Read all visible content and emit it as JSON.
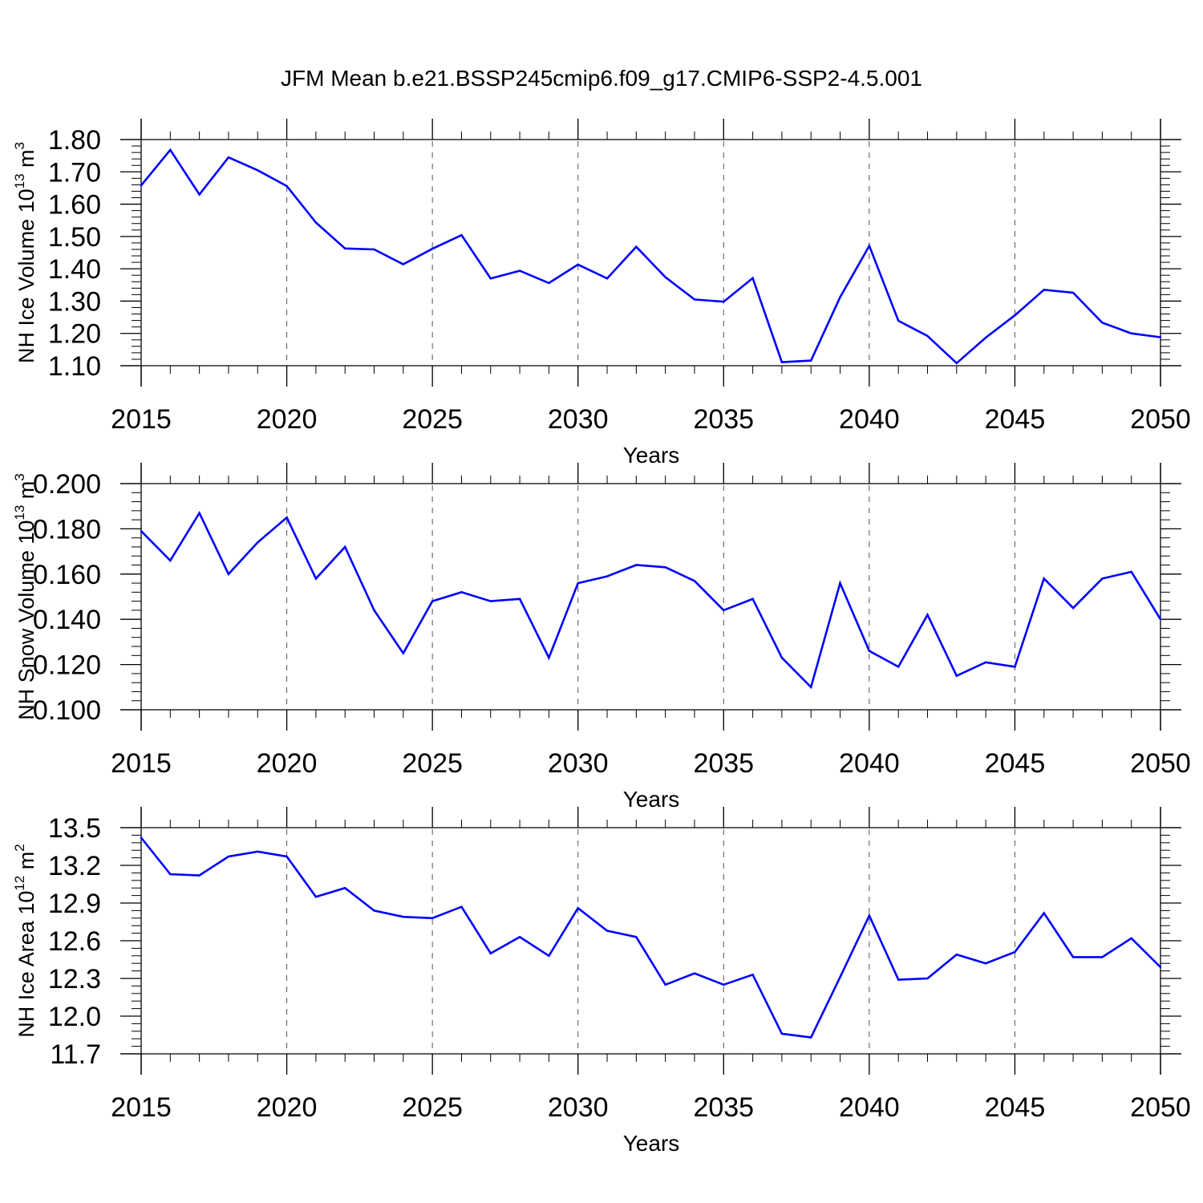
{
  "title": "JFM Mean b.e21.BSSP245cmip6.f09_g17.CMIP6-SSP2-4.5.001",
  "colors": {
    "line": "#0000ff",
    "axis": "#000000",
    "grid": "#555555"
  },
  "chart_data": [
    {
      "type": "line",
      "ylabel_main": "NH Ice Volume 10",
      "ylabel_exp": "13",
      "ylabel_unit": " m",
      "ylabel_unit_exp": "3",
      "xlabel": "Years",
      "xlim": [
        2015,
        2050
      ],
      "ylim": [
        1.1,
        1.8
      ],
      "yticks": [
        "1.80",
        "1.70",
        "1.60",
        "1.50",
        "1.40",
        "1.30",
        "1.20",
        "1.10"
      ],
      "ytick_values": [
        1.8,
        1.7,
        1.6,
        1.5,
        1.4,
        1.3,
        1.2,
        1.1
      ],
      "xticks": [
        "2015",
        "2020",
        "2025",
        "2030",
        "2035",
        "2040",
        "2045",
        "2050"
      ],
      "xtick_values": [
        2015,
        2020,
        2025,
        2030,
        2035,
        2040,
        2045,
        2050
      ],
      "grid": "vertical dashed at major x ticks",
      "x": [
        2015,
        2016,
        2017,
        2018,
        2019,
        2020,
        2021,
        2022,
        2023,
        2024,
        2025,
        2026,
        2027,
        2028,
        2029,
        2030,
        2031,
        2032,
        2033,
        2034,
        2035,
        2036,
        2037,
        2038,
        2039,
        2040,
        2041,
        2042,
        2043,
        2044,
        2045,
        2046,
        2047,
        2048,
        2049,
        2050
      ],
      "y": [
        1.658,
        1.768,
        1.63,
        1.745,
        1.705,
        1.656,
        1.543,
        1.463,
        1.46,
        1.414,
        1.462,
        1.504,
        1.37,
        1.394,
        1.356,
        1.413,
        1.37,
        1.468,
        1.374,
        1.305,
        1.298,
        1.371,
        1.111,
        1.116,
        1.312,
        1.471,
        1.239,
        1.192,
        1.108,
        1.187,
        1.256,
        1.335,
        1.326,
        1.233,
        1.2,
        1.188
      ]
    },
    {
      "type": "line",
      "ylabel_main": "NH Snow Volume 10",
      "ylabel_exp": "13",
      "ylabel_unit": " m",
      "ylabel_unit_exp": "3",
      "xlabel": "Years",
      "xlim": [
        2015,
        2050
      ],
      "ylim": [
        0.1,
        0.2
      ],
      "yticks": [
        "0.200",
        "0.180",
        "0.160",
        "0.140",
        "0.120",
        "0.100"
      ],
      "ytick_values": [
        0.2,
        0.18,
        0.16,
        0.14,
        0.12,
        0.1
      ],
      "xticks": [
        "2015",
        "2020",
        "2025",
        "2030",
        "2035",
        "2040",
        "2045",
        "2050"
      ],
      "xtick_values": [
        2015,
        2020,
        2025,
        2030,
        2035,
        2040,
        2045,
        2050
      ],
      "grid": "vertical dashed at major x ticks",
      "x": [
        2015,
        2016,
        2017,
        2018,
        2019,
        2020,
        2021,
        2022,
        2023,
        2024,
        2025,
        2026,
        2027,
        2028,
        2029,
        2030,
        2031,
        2032,
        2033,
        2034,
        2035,
        2036,
        2037,
        2038,
        2039,
        2040,
        2041,
        2042,
        2043,
        2044,
        2045,
        2046,
        2047,
        2048,
        2049,
        2050
      ],
      "y": [
        0.179,
        0.166,
        0.187,
        0.16,
        0.174,
        0.185,
        0.158,
        0.172,
        0.144,
        0.125,
        0.148,
        0.152,
        0.148,
        0.149,
        0.123,
        0.156,
        0.159,
        0.164,
        0.163,
        0.157,
        0.144,
        0.149,
        0.123,
        0.11,
        0.156,
        0.126,
        0.119,
        0.142,
        0.115,
        0.121,
        0.119,
        0.158,
        0.145,
        0.158,
        0.161,
        0.14
      ]
    },
    {
      "type": "line",
      "ylabel_main": "NH Ice Area 10",
      "ylabel_exp": "12",
      "ylabel_unit": " m",
      "ylabel_unit_exp": "2",
      "xlabel": "Years",
      "xlim": [
        2015,
        2050
      ],
      "ylim": [
        11.7,
        13.5
      ],
      "yticks": [
        "13.5",
        "13.2",
        "12.9",
        "12.6",
        "12.3",
        "12.0",
        "11.7"
      ],
      "ytick_values": [
        13.5,
        13.2,
        12.9,
        12.6,
        12.3,
        12.0,
        11.7
      ],
      "xticks": [
        "2015",
        "2020",
        "2025",
        "2030",
        "2035",
        "2040",
        "2045",
        "2050"
      ],
      "xtick_values": [
        2015,
        2020,
        2025,
        2030,
        2035,
        2040,
        2045,
        2050
      ],
      "grid": "vertical dashed at major x ticks",
      "x": [
        2015,
        2016,
        2017,
        2018,
        2019,
        2020,
        2021,
        2022,
        2023,
        2024,
        2025,
        2026,
        2027,
        2028,
        2029,
        2030,
        2031,
        2032,
        2033,
        2034,
        2035,
        2036,
        2037,
        2038,
        2039,
        2040,
        2041,
        2042,
        2043,
        2044,
        2045,
        2046,
        2047,
        2048,
        2049,
        2050
      ],
      "y": [
        13.42,
        13.13,
        13.12,
        13.27,
        13.31,
        13.27,
        12.95,
        13.02,
        12.84,
        12.79,
        12.78,
        12.87,
        12.5,
        12.63,
        12.48,
        12.86,
        12.68,
        12.63,
        12.25,
        12.34,
        12.25,
        12.33,
        11.86,
        11.83,
        12.31,
        12.8,
        12.29,
        12.3,
        12.49,
        12.42,
        12.51,
        12.82,
        12.47,
        12.47,
        12.62,
        12.39
      ]
    }
  ]
}
